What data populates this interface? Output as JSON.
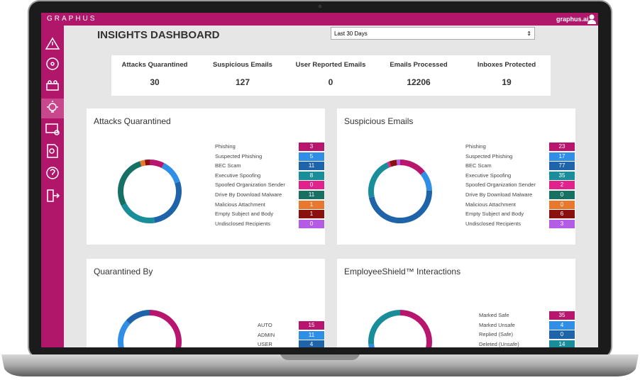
{
  "header": {
    "logo": "GRAPHUS",
    "site": "graphus.ai"
  },
  "title": "INSIGHTS DASHBOARD",
  "date_range": "Last 30 Days",
  "stats": [
    {
      "label": "Attacks Quarantined",
      "value": 30
    },
    {
      "label": "Suspicious Emails",
      "value": 127
    },
    {
      "label": "User Reported Emails",
      "value": 0
    },
    {
      "label": "Emails Processed",
      "value": 12206
    },
    {
      "label": "Inboxes Protected",
      "value": 19
    }
  ],
  "cards": [
    {
      "title": "Attacks Quarantined",
      "items": [
        {
          "label": "Phishing",
          "value": 3,
          "color": "#b8166e"
        },
        {
          "label": "Suspected Phishing",
          "value": 5,
          "color": "#2f8fe6"
        },
        {
          "label": "BEC Scam",
          "value": 11,
          "color": "#1f63a8"
        },
        {
          "label": "Executive Spoofing",
          "value": 8,
          "color": "#1a8d9b"
        },
        {
          "label": "Spoofed Organization Sender",
          "value": 0,
          "color": "#e2228c"
        },
        {
          "label": "Drive By Download Malware",
          "value": 11,
          "color": "#177064"
        },
        {
          "label": "Malicious Attachment",
          "value": 1,
          "color": "#e8782e"
        },
        {
          "label": "Empty Subject and Body",
          "value": 1,
          "color": "#8a1010"
        },
        {
          "label": "Undisclosed Recipients",
          "value": 0,
          "color": "#b55ce6"
        }
      ]
    },
    {
      "title": "Suspicious Emails",
      "items": [
        {
          "label": "Phishing",
          "value": 23,
          "color": "#b8166e"
        },
        {
          "label": "Suspected Phishing",
          "value": 17,
          "color": "#2f8fe6"
        },
        {
          "label": "BEC Scam",
          "value": 77,
          "color": "#1f63a8"
        },
        {
          "label": "Executive Spoofing",
          "value": 35,
          "color": "#1a8d9b"
        },
        {
          "label": "Spoofed Organization Sender",
          "value": 2,
          "color": "#e2228c"
        },
        {
          "label": "Drive By Download Malware",
          "value": 0,
          "color": "#177064"
        },
        {
          "label": "Malicious Attachment",
          "value": 0,
          "color": "#e8782e"
        },
        {
          "label": "Empty Subject and Body",
          "value": 6,
          "color": "#8a1010"
        },
        {
          "label": "Undisclosed Recipients",
          "value": 3,
          "color": "#b55ce6"
        }
      ]
    },
    {
      "title": "Quarantined By",
      "items": [
        {
          "label": "AUTO",
          "value": 15,
          "color": "#b8166e"
        },
        {
          "label": "ADMIN",
          "value": 11,
          "color": "#2f8fe6"
        },
        {
          "label": "USER",
          "value": 4,
          "color": "#1f63a8"
        }
      ]
    },
    {
      "title": "EmployeeShield™ Interactions",
      "items": [
        {
          "label": "Marked Safe",
          "value": 35,
          "color": "#b8166e"
        },
        {
          "label": "Marked Unsafe",
          "value": 4,
          "color": "#2f8fe6"
        },
        {
          "label": "Replied (Safe)",
          "value": 0,
          "color": "#1f63a8"
        },
        {
          "label": "Deleted (Unsafe)",
          "value": 14,
          "color": "#1a8d9b"
        }
      ]
    }
  ]
}
